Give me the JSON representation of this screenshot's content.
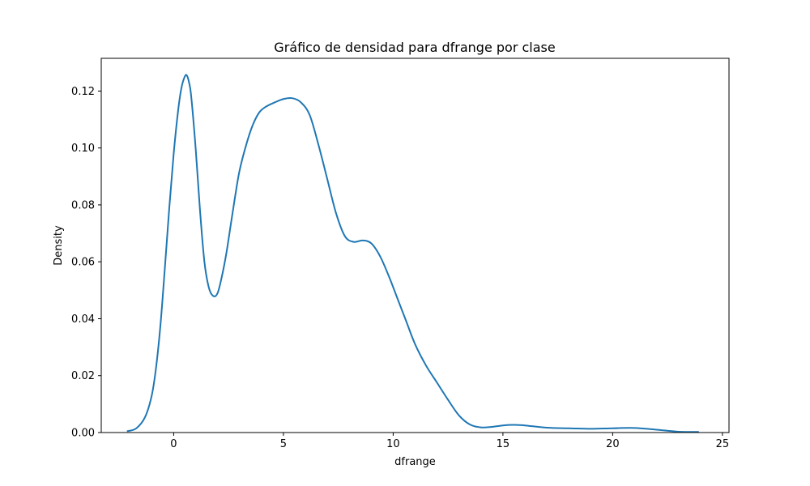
{
  "chart_data": {
    "type": "line",
    "title": "Gráfico de densidad para dfrange por clase",
    "xlabel": "dfrange",
    "ylabel": "Density",
    "xlim": [
      -3.3,
      25.3
    ],
    "ylim": [
      0,
      0.1315
    ],
    "xticks": [
      0,
      5,
      10,
      15,
      20,
      25
    ],
    "xtick_labels": [
      "0",
      "5",
      "10",
      "15",
      "20",
      "25"
    ],
    "yticks": [
      0,
      0.02,
      0.04,
      0.06,
      0.08,
      0.1,
      0.12
    ],
    "ytick_labels": [
      "0.00",
      "0.02",
      "0.04",
      "0.06",
      "0.08",
      "0.10",
      "0.12"
    ],
    "grid": false,
    "legend": "none",
    "series": [
      {
        "color": "#1f77b4",
        "x": [
          -2.1,
          -1.7,
          -1.3,
          -1.0,
          -0.8,
          -0.6,
          -0.4,
          -0.2,
          0.0,
          0.2,
          0.35,
          0.5,
          0.6,
          0.7,
          0.8,
          1.0,
          1.2,
          1.4,
          1.6,
          1.8,
          2.0,
          2.2,
          2.4,
          2.6,
          2.8,
          3.0,
          3.3,
          3.6,
          3.9,
          4.2,
          4.6,
          5.0,
          5.4,
          5.8,
          6.2,
          6.6,
          7.0,
          7.4,
          7.8,
          8.2,
          8.6,
          9.0,
          9.4,
          9.8,
          10.2,
          10.6,
          11.0,
          11.5,
          12.0,
          12.5,
          13.0,
          13.5,
          14.0,
          14.5,
          15.0,
          15.5,
          16.0,
          17.0,
          18.0,
          19.0,
          20.0,
          21.0,
          22.0,
          23.0,
          23.9
        ],
        "y": [
          0.0005,
          0.0015,
          0.0055,
          0.013,
          0.023,
          0.038,
          0.058,
          0.079,
          0.098,
          0.113,
          0.121,
          0.125,
          0.1255,
          0.123,
          0.118,
          0.1,
          0.078,
          0.06,
          0.051,
          0.048,
          0.049,
          0.055,
          0.063,
          0.073,
          0.083,
          0.092,
          0.101,
          0.108,
          0.1125,
          0.1145,
          0.116,
          0.1172,
          0.1175,
          0.116,
          0.1115,
          0.101,
          0.089,
          0.077,
          0.069,
          0.067,
          0.0675,
          0.0665,
          0.062,
          0.055,
          0.047,
          0.039,
          0.031,
          0.0235,
          0.0175,
          0.0115,
          0.006,
          0.0028,
          0.0018,
          0.002,
          0.0025,
          0.0027,
          0.0025,
          0.0017,
          0.0015,
          0.0013,
          0.0015,
          0.0016,
          0.001,
          0.0003,
          0.0002
        ]
      }
    ]
  }
}
